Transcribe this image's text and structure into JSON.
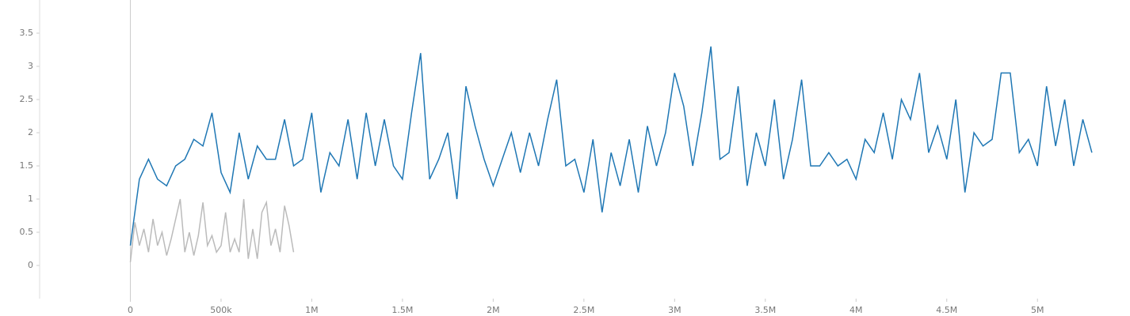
{
  "chart_data": {
    "type": "line",
    "xlim": [
      -500000,
      5510000
    ],
    "ylim": [
      -0.5,
      4
    ],
    "xticks": [
      0,
      {
        "value": 500000,
        "label": "500k"
      },
      {
        "value": 1000000,
        "label": "1M"
      },
      {
        "value": 1500000,
        "label": "1.5M"
      },
      {
        "value": 2000000,
        "label": "2M"
      },
      {
        "value": 2500000,
        "label": "2.5M"
      },
      {
        "value": 3000000,
        "label": "3M"
      },
      {
        "value": 3500000,
        "label": "3.5M"
      },
      {
        "value": 4000000,
        "label": "4M"
      },
      {
        "value": 4500000,
        "label": "4.5M"
      },
      {
        "value": 5000000,
        "label": "5M"
      }
    ],
    "yticks": [
      0,
      0.5,
      1,
      1.5,
      2,
      2.5,
      3,
      3.5
    ],
    "series": [
      {
        "color": "#bbbbbb",
        "x": [
          0,
          25000,
          50000,
          75000,
          100000,
          125000,
          150000,
          175000,
          200000,
          225000,
          250000,
          275000,
          300000,
          325000,
          350000,
          375000,
          400000,
          425000,
          450000,
          475000,
          500000,
          525000,
          550000,
          575000,
          600000,
          625000,
          650000,
          675000,
          700000,
          725000,
          750000,
          775000,
          800000,
          825000,
          850000,
          875000,
          900000
        ],
        "values": [
          0.05,
          0.65,
          0.3,
          0.55,
          0.2,
          0.7,
          0.3,
          0.5,
          0.15,
          0.4,
          0.7,
          1.0,
          0.2,
          0.5,
          0.15,
          0.45,
          0.95,
          0.3,
          0.45,
          0.2,
          0.3,
          0.8,
          0.2,
          0.4,
          0.2,
          1.0,
          0.1,
          0.55,
          0.1,
          0.8,
          0.95,
          0.3,
          0.55,
          0.2,
          0.9,
          0.6,
          0.2
        ]
      },
      {
        "color": "#1f77b4",
        "x": [
          0,
          50000,
          100000,
          150000,
          200000,
          250000,
          300000,
          350000,
          400000,
          450000,
          500000,
          550000,
          600000,
          650000,
          700000,
          750000,
          800000,
          850000,
          900000,
          950000,
          1000000,
          1050000,
          1100000,
          1150000,
          1200000,
          1250000,
          1300000,
          1350000,
          1400000,
          1450000,
          1500000,
          1550000,
          1600000,
          1650000,
          1700000,
          1750000,
          1800000,
          1850000,
          1900000,
          1950000,
          2000000,
          2050000,
          2100000,
          2150000,
          2200000,
          2250000,
          2300000,
          2350000,
          2400000,
          2450000,
          2500000,
          2550000,
          2600000,
          2650000,
          2700000,
          2750000,
          2800000,
          2850000,
          2900000,
          2950000,
          3000000,
          3050000,
          3100000,
          3150000,
          3200000,
          3250000,
          3300000,
          3350000,
          3400000,
          3450000,
          3500000,
          3550000,
          3600000,
          3650000,
          3700000,
          3750000,
          3800000,
          3850000,
          3900000,
          3950000,
          4000000,
          4050000,
          4100000,
          4150000,
          4200000,
          4250000,
          4300000,
          4350000,
          4400000,
          4450000,
          4500000,
          4550000,
          4600000,
          4650000,
          4700000,
          4750000,
          4800000,
          4850000,
          4900000,
          4950000,
          5000000,
          5050000,
          5100000,
          5150000,
          5200000,
          5250000,
          5300000
        ],
        "values": [
          0.3,
          1.3,
          1.6,
          1.3,
          1.2,
          1.5,
          1.6,
          1.9,
          1.8,
          2.3,
          1.4,
          1.1,
          2.0,
          1.3,
          1.8,
          1.6,
          1.6,
          2.2,
          1.5,
          1.6,
          2.3,
          1.1,
          1.7,
          1.5,
          2.2,
          1.3,
          2.3,
          1.5,
          2.2,
          1.5,
          1.3,
          2.3,
          3.2,
          1.3,
          1.6,
          2.0,
          1.0,
          2.7,
          2.1,
          1.6,
          1.2,
          1.6,
          2.0,
          1.4,
          2.0,
          1.5,
          2.2,
          2.8,
          1.5,
          1.6,
          1.1,
          1.9,
          0.8,
          1.7,
          1.2,
          1.9,
          1.1,
          2.1,
          1.5,
          2.0,
          2.9,
          2.4,
          1.5,
          2.3,
          3.3,
          1.6,
          1.7,
          2.7,
          1.2,
          2.0,
          1.5,
          2.5,
          1.3,
          1.9,
          2.8,
          1.5,
          1.5,
          1.7,
          1.5,
          1.6,
          1.3,
          1.9,
          1.7,
          2.3,
          1.6,
          2.5,
          2.2,
          2.9,
          1.7,
          2.1,
          1.6,
          2.5,
          1.1,
          2.0,
          1.8,
          1.9,
          2.9,
          2.9,
          1.7,
          1.9,
          1.5,
          2.7,
          1.8,
          2.5,
          1.5,
          2.2,
          1.7
        ]
      }
    ]
  }
}
